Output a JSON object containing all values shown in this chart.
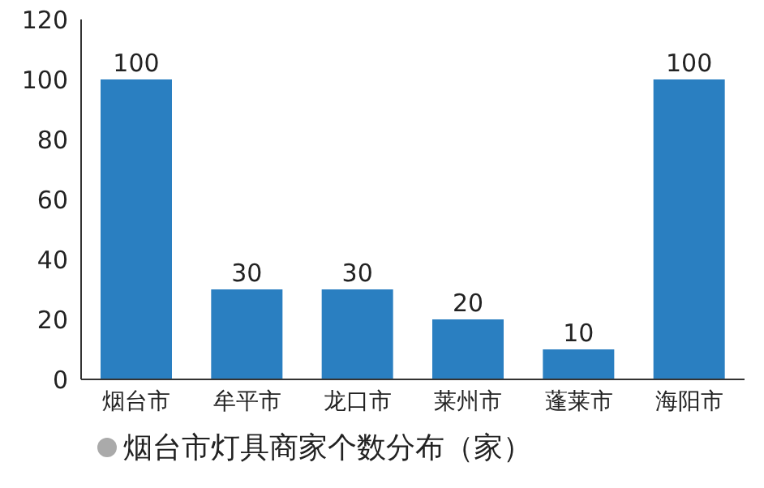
{
  "chart_data": {
    "type": "bar",
    "title": "烟台市灯具商家个数分布（家）",
    "categories": [
      "烟台市",
      "牟平市",
      "龙口市",
      "莱州市",
      "蓬莱市",
      "海阳市"
    ],
    "values": [
      100,
      30,
      30,
      20,
      10,
      100
    ],
    "color": "#2a7fc1",
    "ylim": [
      0,
      120
    ],
    "yticks": [
      0,
      20,
      40,
      60,
      80,
      100,
      120
    ],
    "data_labels": true
  }
}
